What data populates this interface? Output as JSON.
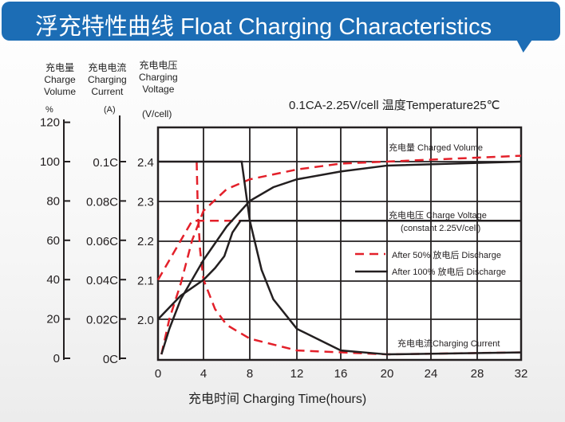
{
  "title": "浮充特性曲线 Float Charging Characteristics",
  "colors": {
    "banner": "#1c6db5",
    "red": "#e3202a",
    "black": "#231f20"
  },
  "chart_data": {
    "type": "line",
    "condition": "0.1CA-2.25V/cell   温度Temperature25℃",
    "xlabel": "充电时间 Charging Time(hours)",
    "x_ticks": [
      "0",
      "4",
      "8",
      "12",
      "16",
      "20",
      "24",
      "28",
      "32"
    ],
    "xlim": [
      0,
      32
    ],
    "axes": [
      {
        "label_cn": "充电量",
        "label_en": [
          "Charge",
          "Volume"
        ],
        "unit": "%",
        "ticks": [
          "120",
          "100",
          "80",
          "60",
          "40",
          "20",
          "0"
        ]
      },
      {
        "label_cn": "充电电流",
        "label_en": [
          "Charging",
          "Current"
        ],
        "unit": "(A)",
        "ticks": [
          "0.1C",
          "0.08C",
          "0.06C",
          "0.04C",
          "0.02C",
          "0C"
        ]
      },
      {
        "label_cn": "充电电压",
        "label_en": [
          "Charging",
          "Voltage"
        ],
        "unit": "(V/cell)",
        "ticks": [
          "2.4",
          "2.3",
          "2.2",
          "2.1",
          "2.0"
        ]
      }
    ],
    "grid": true,
    "annotations": {
      "volume": "充电量 Charged Volume",
      "voltage": "充电电压 Charge Voltage",
      "voltage_note": "(constant 2.25V/cell)",
      "current": "充电电流Charging Current"
    },
    "legend": [
      {
        "name": "After 50%  放电后 Discharge",
        "style": "dashed",
        "color": "#e3202a"
      },
      {
        "name": "After 100%  放电后 Discharge",
        "style": "solid",
        "color": "#231f20"
      }
    ],
    "series": [
      {
        "group": "After 50%",
        "quantity": "voltage",
        "unit": "V/cell",
        "points": [
          [
            0,
            2.1
          ],
          [
            1,
            2.15
          ],
          [
            2,
            2.2
          ],
          [
            3,
            2.25
          ],
          [
            7.5,
            2.25
          ]
        ]
      },
      {
        "group": "After 50%",
        "quantity": "current",
        "unit": "C",
        "points": [
          [
            3.4,
            0.1
          ],
          [
            3.5,
            0.075
          ],
          [
            3.7,
            0.055
          ],
          [
            4,
            0.04
          ],
          [
            5,
            0.025
          ],
          [
            6,
            0.017
          ],
          [
            8,
            0.01
          ],
          [
            12,
            0.004
          ],
          [
            20,
            0.002
          ],
          [
            32,
            0.003
          ]
        ]
      },
      {
        "group": "After 50%",
        "quantity": "volume",
        "unit": "%",
        "points": [
          [
            0.3,
            2
          ],
          [
            1,
            20
          ],
          [
            2,
            38
          ],
          [
            3,
            60
          ],
          [
            4,
            75
          ],
          [
            6,
            86
          ],
          [
            8,
            91
          ],
          [
            12,
            96
          ],
          [
            16,
            99
          ],
          [
            32,
            103
          ]
        ]
      },
      {
        "group": "After 100%",
        "quantity": "voltage",
        "unit": "V/cell",
        "points": [
          [
            0,
            2.0
          ],
          [
            2,
            2.06
          ],
          [
            4,
            2.1
          ],
          [
            5,
            2.13
          ],
          [
            5.8,
            2.16
          ],
          [
            6.5,
            2.22
          ],
          [
            7.2,
            2.25
          ],
          [
            32,
            2.25
          ]
        ]
      },
      {
        "group": "After 100%",
        "quantity": "current",
        "unit": "C",
        "points": [
          [
            0,
            0.1
          ],
          [
            7.3,
            0.1
          ],
          [
            8,
            0.07
          ],
          [
            9,
            0.045
          ],
          [
            10,
            0.03
          ],
          [
            12,
            0.015
          ],
          [
            16,
            0.004
          ],
          [
            20,
            0.002
          ],
          [
            32,
            0.003
          ]
        ]
      },
      {
        "group": "After 100%",
        "quantity": "volume",
        "unit": "%",
        "points": [
          [
            0.3,
            2
          ],
          [
            1,
            15
          ],
          [
            2,
            30
          ],
          [
            4,
            50
          ],
          [
            6,
            67
          ],
          [
            8,
            80
          ],
          [
            10,
            87
          ],
          [
            12,
            91
          ],
          [
            16,
            95
          ],
          [
            20,
            98
          ],
          [
            32,
            100
          ]
        ]
      }
    ]
  }
}
